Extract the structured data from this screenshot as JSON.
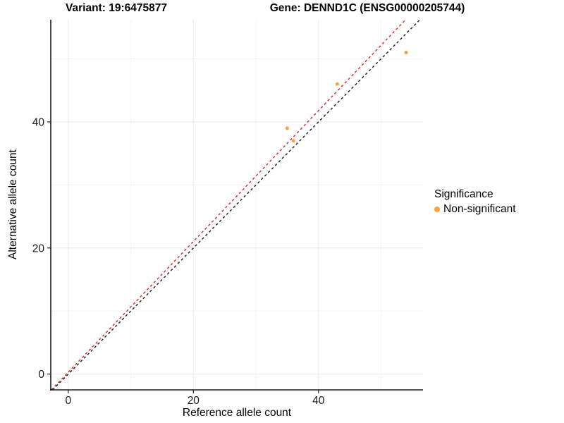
{
  "chart_data": {
    "type": "scatter",
    "titles": {
      "left": "Variant: 19:6475877",
      "right": "Gene: DENND1C (ENSG00000205744)"
    },
    "xlabel": "Reference allele count",
    "ylabel": "Alternative allele count",
    "xlim": [
      -2.8,
      56.7
    ],
    "ylim": [
      -2.5,
      56.2
    ],
    "x_ticks": [
      0,
      20,
      40
    ],
    "y_ticks": [
      0,
      20,
      40
    ],
    "x_minor_ticks": [
      10,
      30,
      50
    ],
    "y_minor_ticks": [
      10,
      30,
      50
    ],
    "grid": {
      "major_color": "#e8e8e8",
      "minor_color": "#f4f4f4",
      "grid_on": true
    },
    "axis_color": "#1a1a1a",
    "tick_label_color": "#1a1a1a",
    "points": {
      "color": "#F9A13C",
      "radius": 2.5,
      "data": [
        [
          35,
          39
        ],
        [
          36,
          37
        ],
        [
          43,
          46
        ],
        [
          54,
          51
        ]
      ]
    },
    "lines": [
      {
        "name": "identity-line",
        "color": "#1A1A1A",
        "from": [
          -2.5,
          -2.5
        ],
        "to": [
          56.2,
          56.2
        ],
        "dash": "3.5,3.5",
        "width": 1.4
      },
      {
        "name": "regression-line",
        "color": "#E02020",
        "from": [
          -2.7,
          -2.5
        ],
        "to": [
          53.9,
          56.2
        ],
        "dash": "3.5,3.5",
        "width": 1.4
      }
    ],
    "legend": {
      "position": "right",
      "title": "Significance",
      "items": [
        {
          "label": "Non-significant",
          "color": "#F9A13C"
        }
      ]
    }
  }
}
